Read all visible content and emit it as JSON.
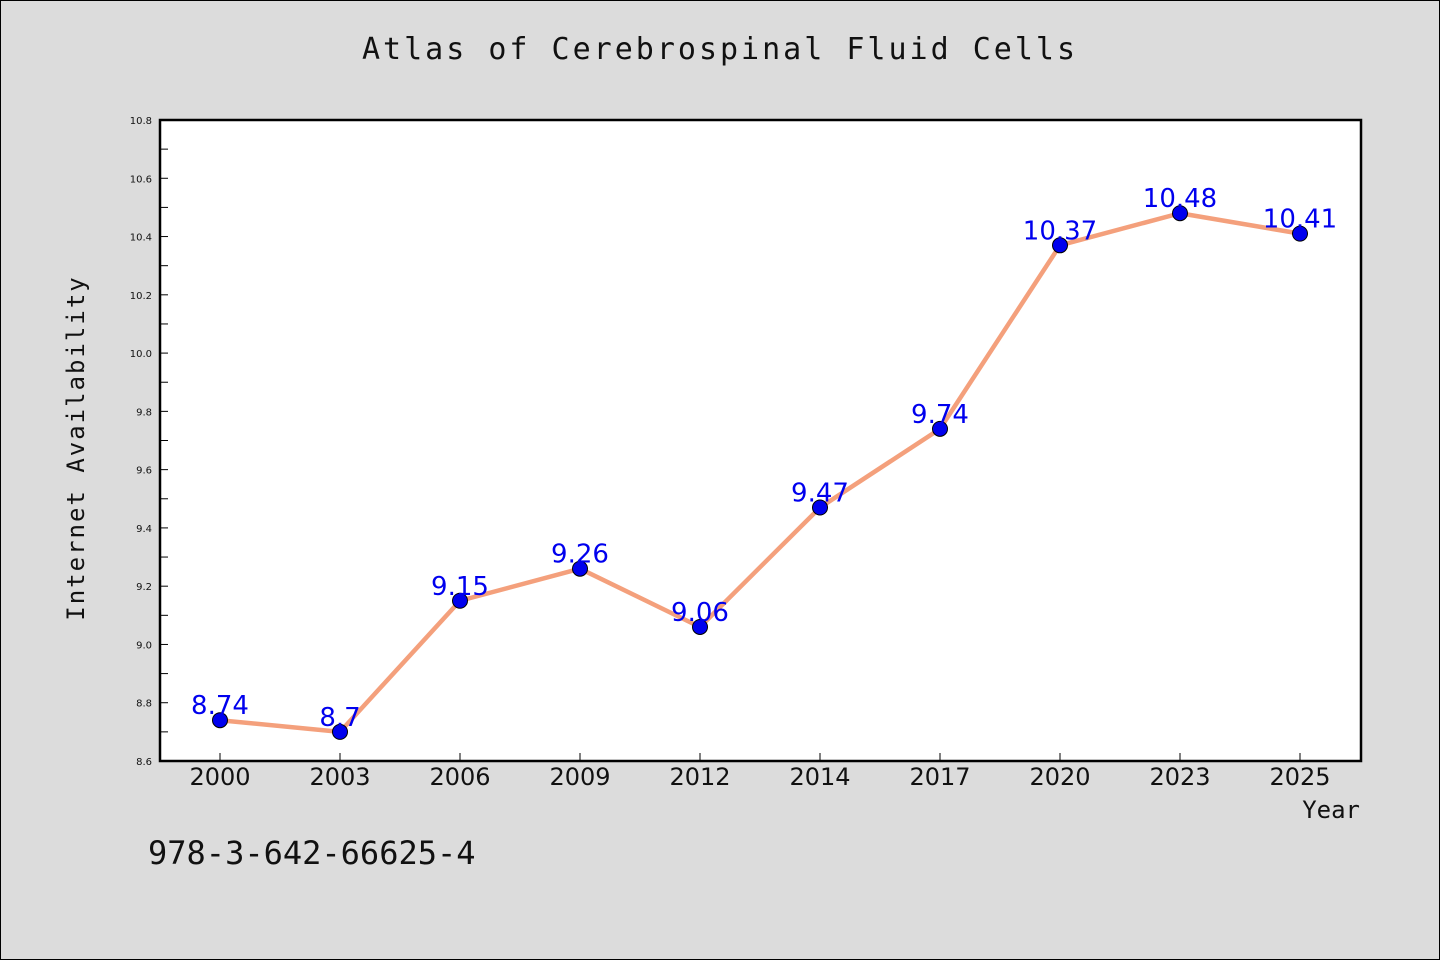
{
  "chart_data": {
    "type": "line",
    "title": "Atlas of Cerebrospinal Fluid Cells",
    "xlabel": "Year",
    "ylabel": "Internet Availability",
    "categories": [
      "2000",
      "2003",
      "2006",
      "2009",
      "2012",
      "2014",
      "2017",
      "2020",
      "2023",
      "2025"
    ],
    "series": [
      {
        "values": [
          8.74,
          8.7,
          9.15,
          9.26,
          9.06,
          9.47,
          9.74,
          10.37,
          10.48,
          10.41
        ],
        "data_labels": [
          "8.74",
          "8.7",
          "9.15",
          "9.26",
          "9.06",
          "9.47",
          "9.74",
          "10.37",
          "10.48",
          "10.41"
        ],
        "line_color": "#f4a07c",
        "marker_color": "#0000ee"
      }
    ],
    "ylim": [
      8.6,
      10.8
    ],
    "yticks": [
      "8.6",
      "8.8",
      "9.0",
      "9.2",
      "9.4",
      "9.6",
      "9.8",
      "10.0",
      "10.2",
      "10.4",
      "10.6",
      "10.8"
    ],
    "grid": false,
    "legend": "none"
  },
  "footer": {
    "isbn": "978-3-642-66625-4"
  }
}
